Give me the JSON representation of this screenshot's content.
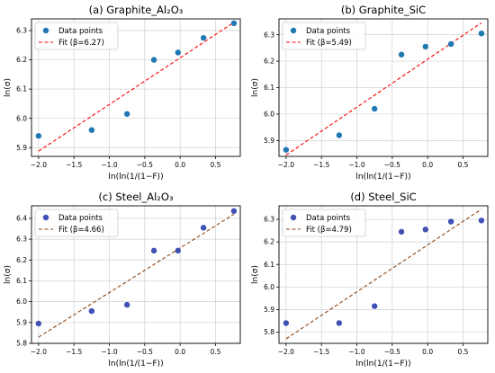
{
  "chart_data": [
    {
      "type": "scatter",
      "title": "(a) Graphite_Al₂O₃",
      "xlabel": "ln(ln(1/(1−F))",
      "ylabel": "ln(σ)",
      "xlim": [
        -2.1,
        0.85
      ],
      "ylim": [
        5.87,
        6.34
      ],
      "xticks": [
        -2.0,
        -1.5,
        -1.0,
        -0.5,
        0.0,
        0.5
      ],
      "xtick_labels": [
        "−2.0",
        "−1.5",
        "−1.0",
        "−0.5",
        "0.0",
        "0.5"
      ],
      "yticks": [
        5.9,
        6.0,
        6.1,
        6.2,
        6.3
      ],
      "ytick_labels": [
        "5.9",
        "6.0",
        "6.1",
        "6.2",
        "6.3"
      ],
      "grid": true,
      "legend_position": "upper-left",
      "series": [
        {
          "name": "Data points",
          "kind": "scatter",
          "color": "#1f77b4",
          "x": [
            -2.0,
            -1.25,
            -0.75,
            -0.37,
            -0.03,
            0.33,
            0.76
          ],
          "y": [
            5.94,
            5.96,
            6.015,
            6.2,
            6.225,
            6.275,
            6.325
          ]
        },
        {
          "name": "Fit (β=6.27)",
          "kind": "line",
          "color": "#ff0000",
          "x": [
            -2.0,
            0.76
          ],
          "y": [
            5.888,
            6.328
          ]
        }
      ]
    },
    {
      "type": "scatter",
      "title": "(b) Graphite_SiC",
      "xlabel": "ln(ln(1/(1−F))",
      "ylabel": "ln(σ)",
      "xlim": [
        -2.1,
        0.85
      ],
      "ylim": [
        5.84,
        6.36
      ],
      "xticks": [
        -2.0,
        -1.5,
        -1.0,
        -0.5,
        0.0,
        0.5
      ],
      "xtick_labels": [
        "−2.0",
        "−1.5",
        "−1.0",
        "−0.5",
        "0.0",
        "0.5"
      ],
      "yticks": [
        5.9,
        6.0,
        6.1,
        6.2,
        6.3
      ],
      "ytick_labels": [
        "5.9",
        "6.0",
        "6.1",
        "6.2",
        "6.3"
      ],
      "grid": true,
      "legend_position": "upper-left",
      "series": [
        {
          "name": "Data points",
          "kind": "scatter",
          "color": "#1f77b4",
          "x": [
            -2.0,
            -1.25,
            -0.75,
            -0.37,
            -0.03,
            0.33,
            0.76
          ],
          "y": [
            5.865,
            5.92,
            6.02,
            6.225,
            6.255,
            6.265,
            6.305
          ]
        },
        {
          "name": "Fit (β=5.49)",
          "kind": "line",
          "color": "#ff0000",
          "x": [
            -2.0,
            0.76
          ],
          "y": [
            5.845,
            6.345
          ]
        }
      ]
    },
    {
      "type": "scatter",
      "title": "(c) Steel_Al₂O₃",
      "xlabel": "ln(ln(1/(1−F))",
      "ylabel": "ln(σ)",
      "xlim": [
        -2.1,
        0.85
      ],
      "ylim": [
        5.8,
        6.46
      ],
      "xticks": [
        -2.0,
        -1.5,
        -1.0,
        -0.5,
        0.0,
        0.5
      ],
      "xtick_labels": [
        "−2.0",
        "−1.5",
        "−1.0",
        "−0.5",
        "0.0",
        "0.5"
      ],
      "yticks": [
        5.8,
        5.9,
        6.0,
        6.1,
        6.2,
        6.3,
        6.4
      ],
      "ytick_labels": [
        "5.8",
        "5.9",
        "6.0",
        "6.1",
        "6.2",
        "6.3",
        "6.4"
      ],
      "grid": true,
      "legend_position": "upper-left",
      "series": [
        {
          "name": "Data points",
          "kind": "scatter",
          "color": "#3f51b5",
          "x": [
            -2.0,
            -1.25,
            -0.75,
            -0.37,
            -0.03,
            0.33,
            0.76
          ],
          "y": [
            5.895,
            5.955,
            5.985,
            6.245,
            6.245,
            6.355,
            6.435
          ]
        },
        {
          "name": "Fit (β=4.66)",
          "kind": "line",
          "color": "#8b4513",
          "x": [
            -2.0,
            0.76
          ],
          "y": [
            5.83,
            6.42
          ]
        }
      ]
    },
    {
      "type": "scatter",
      "title": "(d) Steel_SiC",
      "xlabel": "ln(ln(1/(1−F))",
      "ylabel": "ln(σ)",
      "xlim": [
        -2.1,
        0.85
      ],
      "ylim": [
        5.75,
        6.36
      ],
      "xticks": [
        -2.0,
        -1.5,
        -1.0,
        -0.5,
        0.0,
        0.5
      ],
      "xtick_labels": [
        "−2.0",
        "−1.5",
        "−1.0",
        "−0.5",
        "0.0",
        "0.5"
      ],
      "yticks": [
        5.8,
        5.9,
        6.0,
        6.1,
        6.2,
        6.3
      ],
      "ytick_labels": [
        "5.8",
        "5.9",
        "6.0",
        "6.1",
        "6.2",
        "6.3"
      ],
      "grid": true,
      "legend_position": "upper-left",
      "series": [
        {
          "name": "Data points",
          "kind": "scatter",
          "color": "#3f51b5",
          "x": [
            -2.0,
            -1.25,
            -0.75,
            -0.37,
            -0.03,
            0.33,
            0.76
          ],
          "y": [
            5.84,
            5.84,
            5.915,
            6.245,
            6.255,
            6.29,
            6.295
          ]
        },
        {
          "name": "Fit (β=4.79)",
          "kind": "line",
          "color": "#8b4513",
          "x": [
            -2.0,
            0.76
          ],
          "y": [
            5.77,
            6.345
          ]
        }
      ]
    }
  ]
}
